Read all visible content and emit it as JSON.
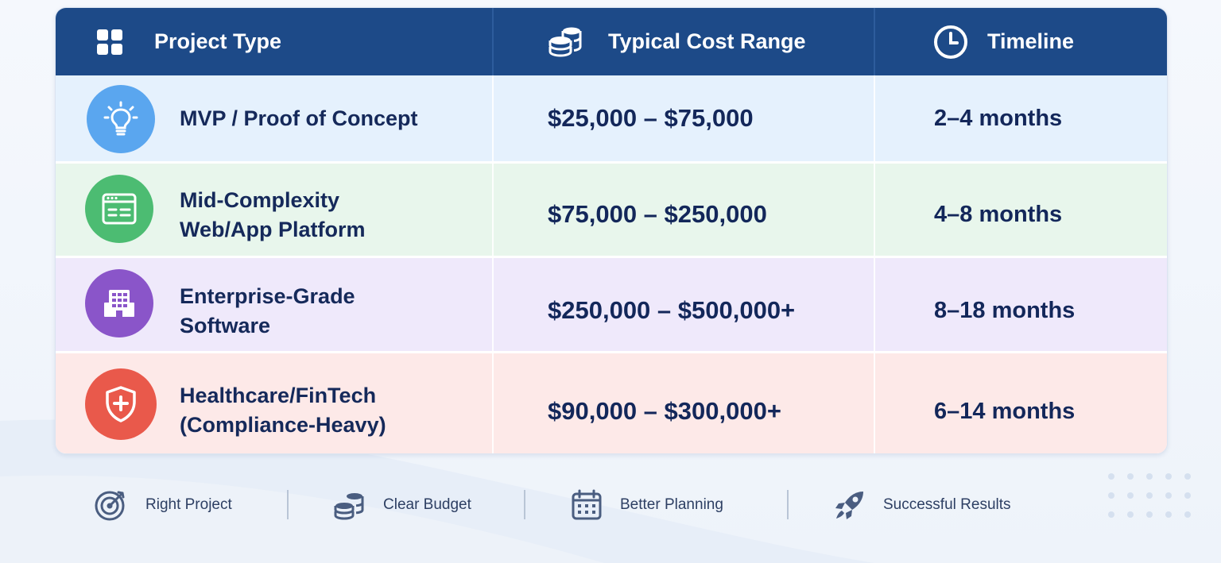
{
  "header": {
    "project_type": "Project Type",
    "cost_range": "Typical Cost Range",
    "timeline": "Timeline"
  },
  "rows": [
    {
      "name": "MVP / Proof of Concept",
      "name_lines": [
        "MVP / Proof of Concept"
      ],
      "cost": "$25,000 – $75,000",
      "timeline": "2–4 months",
      "icon": "lightbulb-icon",
      "color": "#5aa6ef",
      "bg": "#e5f1fd"
    },
    {
      "name": "Mid-Complexity Web/App Platform",
      "name_lines": [
        "Mid-Complexity",
        "Web/App Platform"
      ],
      "cost": "$75,000 – $250,000",
      "timeline": "4–8 months",
      "icon": "browser-window-icon",
      "color": "#4cbc72",
      "bg": "#e8f6ec"
    },
    {
      "name": "Enterprise-Grade Software",
      "name_lines": [
        "Enterprise-Grade",
        "Software"
      ],
      "cost": "$250,000 – $500,000+",
      "timeline": "8–18 months",
      "icon": "building-icon",
      "color": "#8a55c9",
      "bg": "#efe9fb"
    },
    {
      "name": "Healthcare/FinTech (Compliance-Heavy)",
      "name_lines": [
        "Healthcare/FinTech",
        "(Compliance-Heavy)"
      ],
      "cost": "$90,000 – $300,000+",
      "timeline": "6–14 months",
      "icon": "shield-plus-icon",
      "color": "#e9594b",
      "bg": "#fde9e8"
    }
  ],
  "footer": [
    {
      "label": "Right Project",
      "icon": "target-icon"
    },
    {
      "label": "Clear Budget",
      "icon": "coins-icon"
    },
    {
      "label": "Better Planning",
      "icon": "calendar-icon"
    },
    {
      "label": "Successful Results",
      "icon": "rocket-icon"
    }
  ],
  "colors": {
    "header_bg": "#1d4a88",
    "text_dark": "#15295a",
    "icon_muted": "#4a5d80"
  }
}
